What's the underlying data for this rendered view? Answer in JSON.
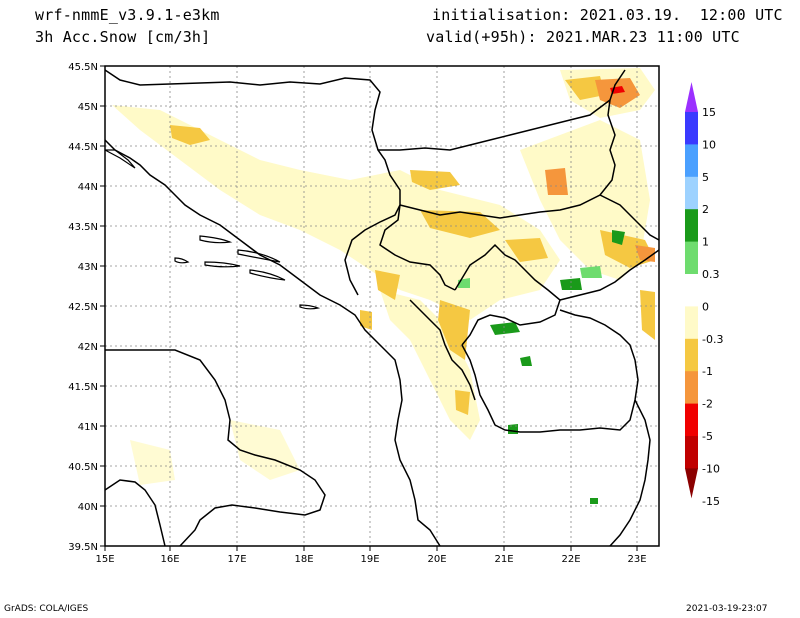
{
  "header": {
    "model": "wrf-nmmE_v3.9.1-e3km",
    "field": "3h Acc.Snow [cm/3h]",
    "init": "initialisation: 2021.03.19.  12:00 UTC",
    "valid": "valid(+95h): 2021.MAR.23 11:00 UTC"
  },
  "footer": {
    "left": "GrADS: COLA/IGES",
    "right": "2021-03-19-23:07"
  },
  "map": {
    "lat_labels": [
      "45.5N",
      "45N",
      "44.5N",
      "44N",
      "43.5N",
      "43N",
      "42.5N",
      "42N",
      "41.5N",
      "41N",
      "40.5N",
      "40N",
      "39.5N"
    ],
    "lon_labels": [
      "15E",
      "16E",
      "17E",
      "18E",
      "19E",
      "20E",
      "21E",
      "22E",
      "23E"
    ]
  },
  "colorbar": {
    "labels": [
      "15",
      "10",
      "5",
      "2",
      "1",
      "0.3",
      "0",
      "-0.3",
      "-1",
      "-2",
      "-5",
      "-10",
      "-15"
    ],
    "colors": [
      "#9b30ff",
      "#3a3aff",
      "#4aa0ff",
      "#9dd2ff",
      "#1a9a1a",
      "#6edc6e",
      "#ffffff",
      "#fffac8",
      "#f5c842",
      "#f5963c",
      "#f00000",
      "#c00000",
      "#8b0000"
    ]
  }
}
